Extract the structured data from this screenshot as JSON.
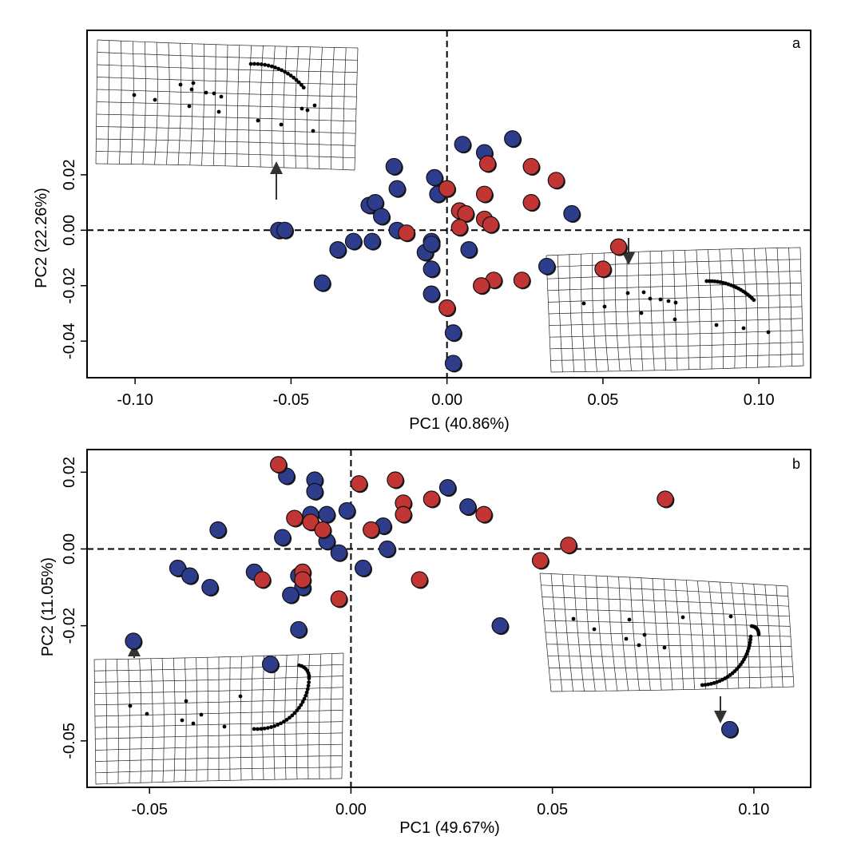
{
  "colors": {
    "blue": "#2e3c8c",
    "red": "#c23535",
    "shadow": "#1c1c1c",
    "refline": "#000000"
  },
  "chart_data": [
    {
      "type": "scatter",
      "panel_label": "a",
      "xlabel": "PC1 (40.86%)",
      "ylabel": "PC2 (22.26%)",
      "xlim": [
        -0.1154,
        0.1166
      ],
      "ylim": [
        -0.0532,
        0.0721
      ],
      "xticks": [
        -0.1,
        -0.05,
        0.0,
        0.05,
        0.1
      ],
      "xtick_labels": [
        "-0.10",
        "-0.05",
        "0.00",
        "0.05",
        "0.10"
      ],
      "yticks": [
        -0.04,
        -0.02,
        0.0,
        0.02
      ],
      "ytick_labels": [
        "-0.04",
        "-0.02",
        "0.00",
        "0.02"
      ],
      "reference_lines": {
        "x": 0,
        "y": 0,
        "style": "dashed"
      },
      "series": [
        {
          "color": "blue",
          "points": [
            [
              0.005,
              0.031
            ],
            [
              0.012,
              0.028
            ],
            [
              0.021,
              0.033
            ],
            [
              -0.017,
              0.023
            ],
            [
              -0.016,
              0.015
            ],
            [
              -0.004,
              0.019
            ],
            [
              -0.003,
              0.013
            ],
            [
              -0.024,
              0.009
            ],
            [
              -0.025,
              0.009
            ],
            [
              -0.023,
              0.01
            ],
            [
              -0.021,
              0.005
            ],
            [
              -0.054,
              0.0
            ],
            [
              -0.052,
              0.0
            ],
            [
              -0.016,
              0.0
            ],
            [
              -0.03,
              -0.004
            ],
            [
              -0.035,
              -0.007
            ],
            [
              -0.024,
              -0.004
            ],
            [
              -0.005,
              -0.004
            ],
            [
              -0.007,
              -0.008
            ],
            [
              -0.005,
              -0.005
            ],
            [
              0.007,
              -0.007
            ],
            [
              -0.005,
              -0.014
            ],
            [
              -0.04,
              -0.019
            ],
            [
              -0.005,
              -0.023
            ],
            [
              0.002,
              -0.037
            ],
            [
              0.002,
              -0.048
            ],
            [
              0.032,
              -0.013
            ],
            [
              0.04,
              0.006
            ]
          ]
        },
        {
          "color": "red",
          "points": [
            [
              0.013,
              0.024
            ],
            [
              0.027,
              0.023
            ],
            [
              0.035,
              0.018
            ],
            [
              0.0,
              0.015
            ],
            [
              0.012,
              0.013
            ],
            [
              0.027,
              0.01
            ],
            [
              0.004,
              0.007
            ],
            [
              0.006,
              0.006
            ],
            [
              0.012,
              0.004
            ],
            [
              0.014,
              0.002
            ],
            [
              0.004,
              0.001
            ],
            [
              -0.013,
              -0.001
            ],
            [
              0.055,
              -0.006
            ],
            [
              0.05,
              -0.014
            ],
            [
              0.015,
              -0.018
            ],
            [
              0.024,
              -0.018
            ],
            [
              0.011,
              -0.02
            ],
            [
              0.0,
              -0.028
            ]
          ]
        }
      ]
    },
    {
      "type": "scatter",
      "panel_label": "b",
      "xlabel": "PC1 (49.67%)",
      "ylabel": "PC2 (11.05%)",
      "xlim": [
        -0.0655,
        0.1141
      ],
      "ylim": [
        -0.0621,
        0.0259
      ],
      "xticks": [
        -0.05,
        0.0,
        0.05,
        0.1
      ],
      "xtick_labels": [
        "-0.05",
        "0.00",
        "0.05",
        "0.10"
      ],
      "yticks": [
        -0.05,
        -0.02,
        0.0,
        0.02
      ],
      "ytick_labels": [
        "-0.05",
        "-0.02",
        "0.00",
        "0.02"
      ],
      "reference_lines": {
        "x": 0,
        "y": 0,
        "style": "dashed"
      },
      "series": [
        {
          "color": "blue",
          "points": [
            [
              -0.016,
              0.019
            ],
            [
              -0.009,
              0.018
            ],
            [
              -0.009,
              0.015
            ],
            [
              0.024,
              0.016
            ],
            [
              0.029,
              0.011
            ],
            [
              -0.01,
              0.009
            ],
            [
              -0.006,
              0.009
            ],
            [
              -0.001,
              0.01
            ],
            [
              -0.033,
              0.005
            ],
            [
              -0.017,
              0.003
            ],
            [
              -0.006,
              0.002
            ],
            [
              0.008,
              0.006
            ],
            [
              0.009,
              0.0
            ],
            [
              -0.003,
              -0.001
            ],
            [
              -0.043,
              -0.005
            ],
            [
              -0.04,
              -0.007
            ],
            [
              -0.035,
              -0.01
            ],
            [
              -0.024,
              -0.006
            ],
            [
              -0.013,
              -0.007
            ],
            [
              -0.012,
              -0.01
            ],
            [
              -0.015,
              -0.012
            ],
            [
              0.003,
              -0.005
            ],
            [
              -0.013,
              -0.021
            ],
            [
              0.037,
              -0.02
            ],
            [
              -0.054,
              -0.024
            ],
            [
              -0.02,
              -0.03
            ],
            [
              0.094,
              -0.047
            ]
          ]
        },
        {
          "color": "red",
          "points": [
            [
              -0.018,
              0.022
            ],
            [
              0.002,
              0.017
            ],
            [
              0.011,
              0.018
            ],
            [
              0.013,
              0.012
            ],
            [
              0.02,
              0.013
            ],
            [
              0.013,
              0.009
            ],
            [
              0.033,
              0.009
            ],
            [
              0.078,
              0.013
            ],
            [
              -0.014,
              0.008
            ],
            [
              -0.01,
              0.007
            ],
            [
              -0.007,
              0.005
            ],
            [
              0.005,
              0.005
            ],
            [
              0.054,
              0.001
            ],
            [
              0.047,
              -0.003
            ],
            [
              -0.012,
              -0.006
            ],
            [
              -0.022,
              -0.008
            ],
            [
              -0.012,
              -0.008
            ],
            [
              0.017,
              -0.008
            ],
            [
              -0.003,
              -0.013
            ]
          ]
        }
      ]
    }
  ]
}
